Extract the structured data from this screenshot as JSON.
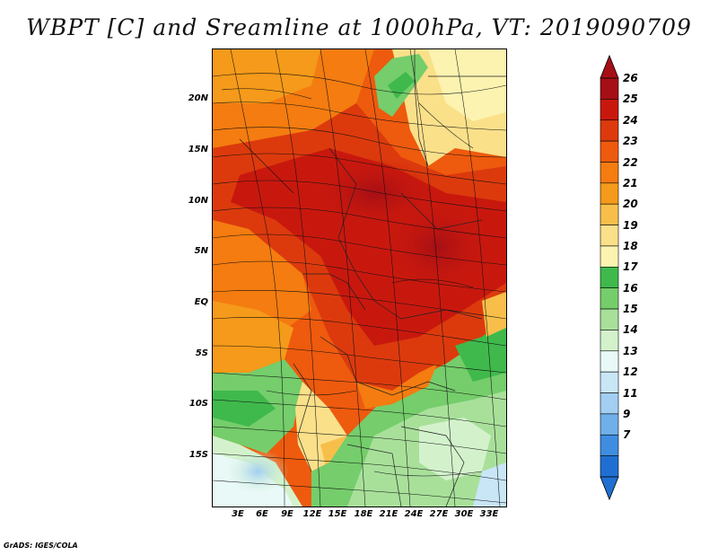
{
  "title": "WBPT [C] and Sreamline at 1000hPa, VT: 2019090709",
  "footer": "GrADS: IGES/COLA",
  "y_axis_labels": [
    "20N",
    "15N",
    "10N",
    "5N",
    "EQ",
    "5S",
    "10S",
    "15S"
  ],
  "x_axis_labels": [
    "3E",
    "6E",
    "9E",
    "12E",
    "15E",
    "18E",
    "21E",
    "24E",
    "27E",
    "30E",
    "33E"
  ],
  "colorbar": {
    "labels": [
      "26",
      "25",
      "24",
      "23",
      "22",
      "21",
      "20",
      "19",
      "18",
      "17",
      "16",
      "15",
      "14",
      "13",
      "12",
      "11",
      "9",
      "7"
    ],
    "colors": [
      "#a50f15",
      "#c8180e",
      "#dc3a0d",
      "#ee5a0e",
      "#f47c10",
      "#f59a1a",
      "#f7bf4a",
      "#fbe08a",
      "#fcf3b0",
      "#3fb94c",
      "#75cd6b",
      "#a8e09a",
      "#d3f2cc",
      "#e9f9f8",
      "#c9e6f7",
      "#a2cef2",
      "#6fb0ea",
      "#3e8de0",
      "#1f6fd2"
    ]
  },
  "icons": [
    "streamline-arrows",
    "colorbar-upper-arrow",
    "colorbar-lower-arrow"
  ]
}
